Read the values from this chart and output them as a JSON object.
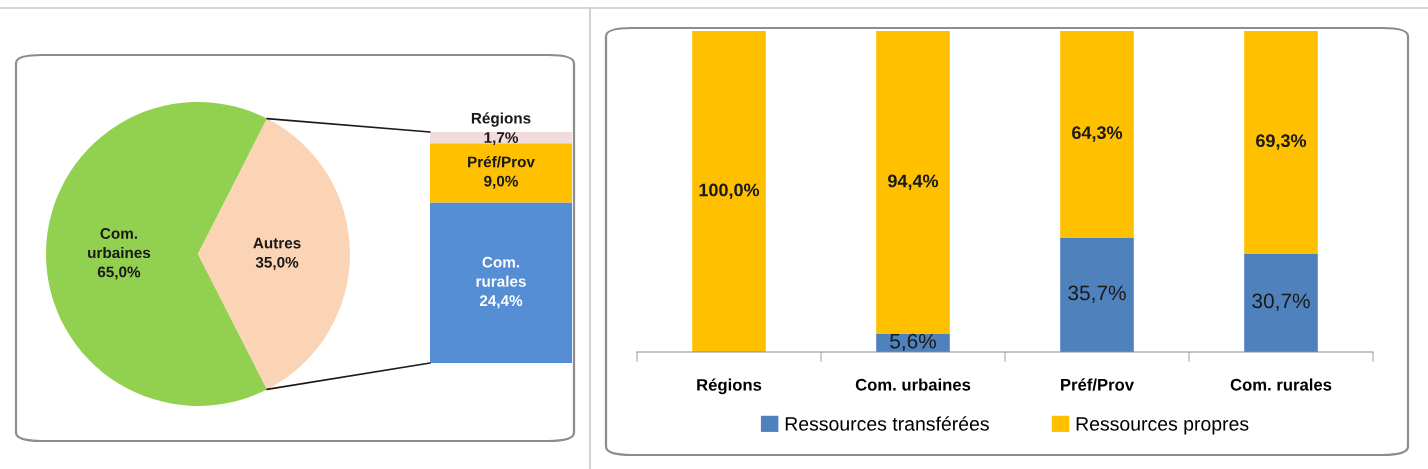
{
  "chart_data": [
    {
      "type": "pie",
      "categories": [
        "Com. urbaines",
        "Autres"
      ],
      "values": [
        65.0,
        35.0
      ],
      "colors": [
        "#92d050",
        "#fad4b4"
      ],
      "value_labels": [
        "65,0%",
        "35,0%"
      ]
    },
    {
      "type": "bar",
      "stacked": true,
      "tick_labels": false,
      "categories": [
        null
      ],
      "series": [
        {
          "name": "Com. rurales",
          "color": "#558ed5",
          "values": [
            24.4
          ],
          "value_labels": [
            "24,4%"
          ]
        },
        {
          "name": "Préf/Prov",
          "color": "#ffc000",
          "values": [
            9.0
          ],
          "value_labels": [
            "9,0%"
          ]
        },
        {
          "name": "Régions",
          "color": "#f2dcdb",
          "values": [
            1.7
          ],
          "value_labels": [
            "1,7%"
          ]
        }
      ]
    },
    {
      "type": "bar",
      "stacked": true,
      "tick_labels": "x",
      "legend": "bottom",
      "categories": [
        "Régions",
        "Com. urbaines",
        "Préf/Prov",
        "Com. rurales"
      ],
      "series": [
        {
          "name": "Ressources transférées",
          "color": "#4f81bd",
          "values": [
            null,
            5.6,
            35.7,
            30.7
          ],
          "value_labels": [
            null,
            "5,6%",
            "35,7%",
            "30,7%"
          ]
        },
        {
          "name": "Ressources propres",
          "color": "#ffc000",
          "values": [
            100.0,
            94.4,
            64.3,
            69.3
          ],
          "value_labels": [
            "100,0%",
            "94,4%",
            "64,3%",
            "69,3%"
          ]
        }
      ]
    }
  ]
}
